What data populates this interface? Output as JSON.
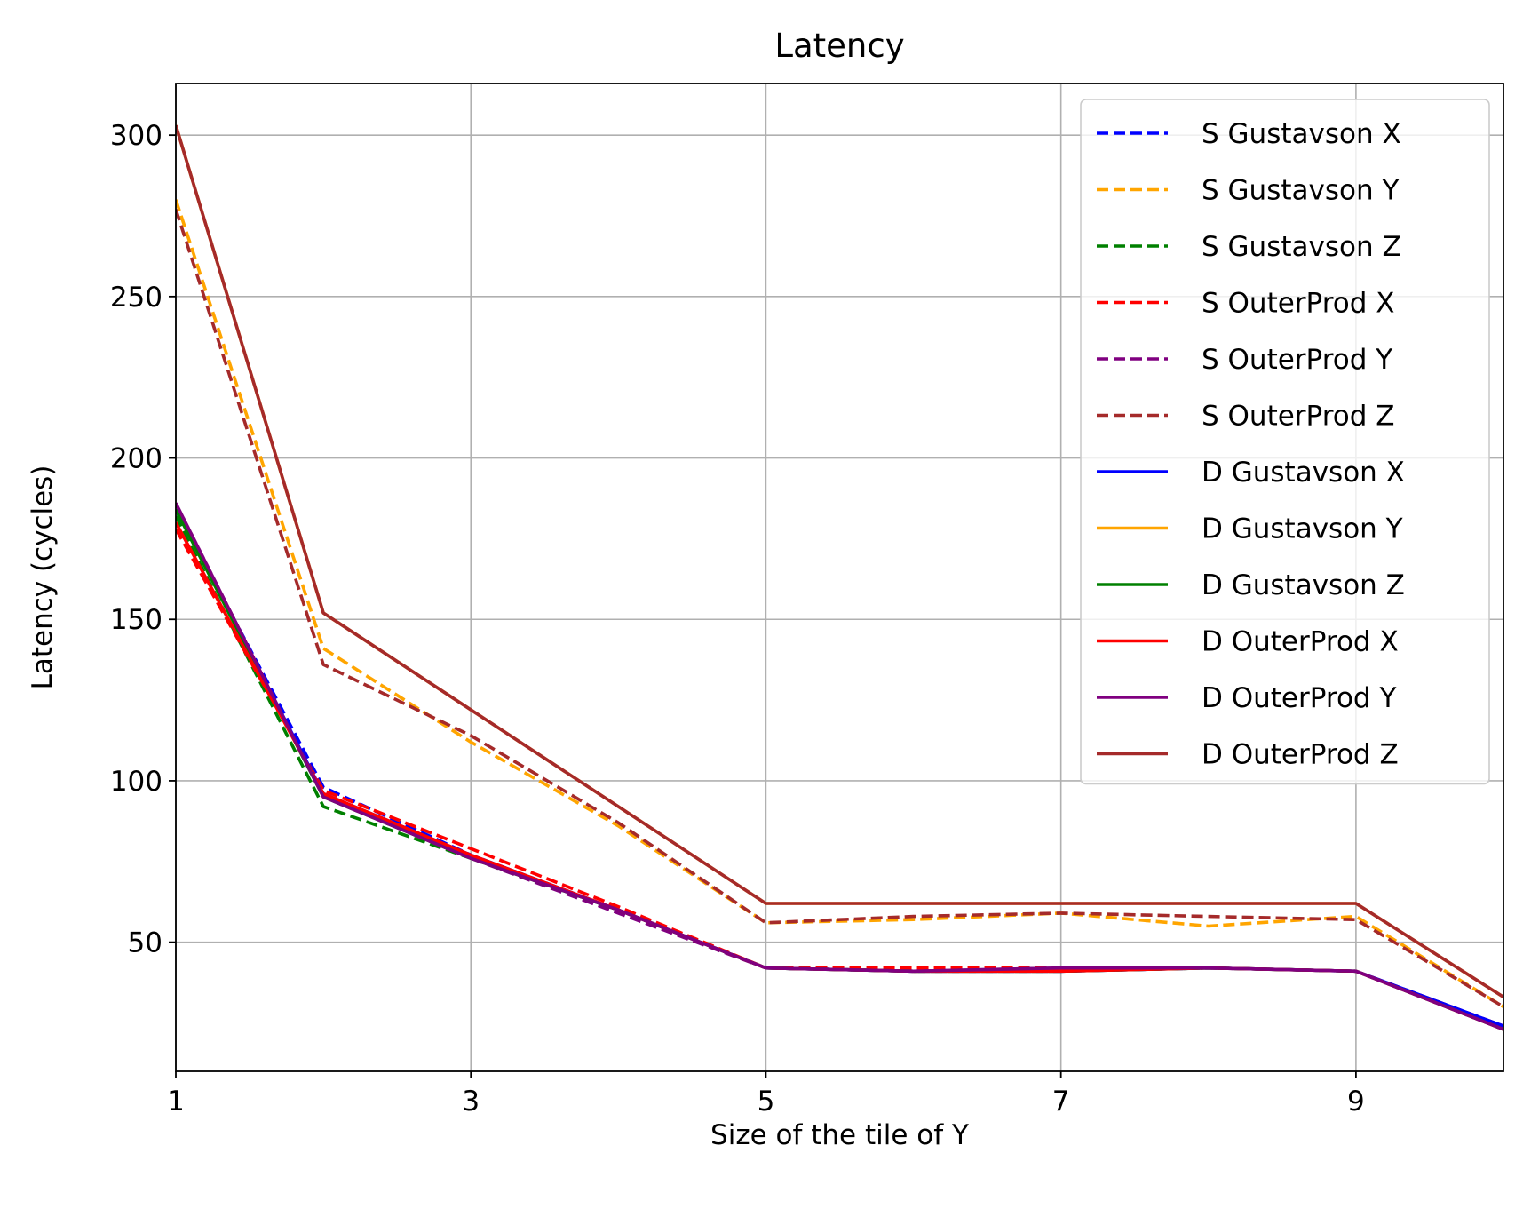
{
  "chart_data": {
    "type": "line",
    "title": "Latency",
    "xlabel": "Size of the tile of Y",
    "ylabel": "Latency (cycles)",
    "xlim": [
      1,
      10
    ],
    "ylim": [
      10,
      316
    ],
    "xticks": [
      1,
      3,
      5,
      7,
      9
    ],
    "yticks": [
      50,
      100,
      150,
      200,
      250,
      300
    ],
    "grid": true,
    "legend_position": "top-right",
    "x": [
      1,
      2,
      3,
      4,
      5,
      6,
      7,
      8,
      9,
      10
    ],
    "series": [
      {
        "name": "S Gustavson X",
        "color": "#0000ff",
        "style": "dashed",
        "values": [
          184,
          98,
          77,
          60,
          42,
          41,
          41,
          42,
          41,
          24
        ]
      },
      {
        "name": "S Gustavson Y",
        "color": "#ffa500",
        "style": "dashed",
        "values": [
          280,
          141,
          112,
          86,
          56,
          57,
          59,
          55,
          58,
          30
        ]
      },
      {
        "name": "S Gustavson Z",
        "color": "#008000",
        "style": "dashed",
        "values": [
          182,
          92,
          76,
          60,
          42,
          41,
          41,
          42,
          41,
          23
        ]
      },
      {
        "name": "S OuterProd X",
        "color": "#ff0000",
        "style": "dashed",
        "values": [
          178,
          97,
          79,
          61,
          42,
          42,
          42,
          42,
          41,
          24
        ]
      },
      {
        "name": "S OuterProd Y",
        "color": "#800080",
        "style": "dashed",
        "values": [
          186,
          95,
          76,
          59,
          42,
          41,
          42,
          42,
          41,
          23
        ]
      },
      {
        "name": "S OuterProd Z",
        "color": "#a52a2a",
        "style": "dashed",
        "values": [
          277,
          136,
          114,
          87,
          56,
          58,
          59,
          58,
          57,
          30
        ]
      },
      {
        "name": "D Gustavson X",
        "color": "#0000ff",
        "style": "solid",
        "values": [
          184,
          96,
          77,
          60,
          42,
          41,
          41,
          42,
          41,
          24
        ]
      },
      {
        "name": "D Gustavson Y",
        "color": "#ffa500",
        "style": "solid",
        "values": [
          303,
          152,
          122,
          92,
          62,
          62,
          62,
          62,
          62,
          33
        ]
      },
      {
        "name": "D Gustavson Z",
        "color": "#008000",
        "style": "solid",
        "values": [
          184,
          95,
          76,
          60,
          42,
          41,
          41,
          42,
          41,
          23
        ]
      },
      {
        "name": "D OuterProd X",
        "color": "#ff0000",
        "style": "solid",
        "values": [
          180,
          96,
          77,
          60,
          42,
          41,
          41,
          42,
          41,
          23
        ]
      },
      {
        "name": "D OuterProd Y",
        "color": "#800080",
        "style": "solid",
        "values": [
          186,
          95,
          76,
          60,
          42,
          41,
          42,
          42,
          41,
          23
        ]
      },
      {
        "name": "D OuterProd Z",
        "color": "#a52a2a",
        "style": "solid",
        "values": [
          303,
          152,
          122,
          92,
          62,
          62,
          62,
          62,
          62,
          33
        ]
      }
    ]
  }
}
